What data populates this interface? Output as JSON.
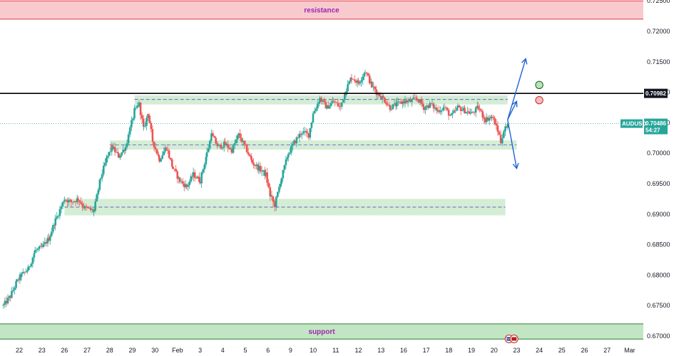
{
  "chart_data": {
    "type": "candlestick",
    "symbol": "AUDUSD",
    "last_price": "0.70486",
    "countdown": "54:27",
    "marked_level": "0.70982",
    "ylim": [
      0.6685,
      0.725
    ],
    "y_ticks": [
      "0.72500",
      "0.72000",
      "0.71500",
      "0.71000",
      "0.70500",
      "0.70000",
      "0.69500",
      "0.69000",
      "0.68500",
      "0.68000",
      "0.67500",
      "0.67000"
    ],
    "x_ticks": [
      {
        "label": "22",
        "t": 0
      },
      {
        "label": "23",
        "t": 1
      },
      {
        "label": "26",
        "t": 2
      },
      {
        "label": "27",
        "t": 3
      },
      {
        "label": "28",
        "t": 4
      },
      {
        "label": "29",
        "t": 5
      },
      {
        "label": "30",
        "t": 6
      },
      {
        "label": "Feb",
        "t": 7
      },
      {
        "label": "3",
        "t": 8
      },
      {
        "label": "4",
        "t": 9
      },
      {
        "label": "5",
        "t": 10
      },
      {
        "label": "6",
        "t": 11
      },
      {
        "label": "9",
        "t": 12
      },
      {
        "label": "10",
        "t": 13
      },
      {
        "label": "11",
        "t": 14
      },
      {
        "label": "12",
        "t": 15
      },
      {
        "label": "13",
        "t": 16
      },
      {
        "label": "16",
        "t": 17
      },
      {
        "label": "17",
        "t": 18
      },
      {
        "label": "18",
        "t": 19
      },
      {
        "label": "19",
        "t": 20
      },
      {
        "label": "20",
        "t": 21
      },
      {
        "label": "23",
        "t": 22
      },
      {
        "label": "24",
        "t": 23
      },
      {
        "label": "25",
        "t": 24
      },
      {
        "label": "26",
        "t": 25
      },
      {
        "label": "27",
        "t": 26
      },
      {
        "label": "Mar",
        "t": 27
      }
    ],
    "price_path": [
      [
        -0.7,
        0.675
      ],
      [
        -0.4,
        0.6765
      ],
      [
        -0.1,
        0.679
      ],
      [
        0.1,
        0.68
      ],
      [
        0.4,
        0.681
      ],
      [
        0.7,
        0.684
      ],
      [
        1.0,
        0.6845
      ],
      [
        1.3,
        0.686
      ],
      [
        1.6,
        0.689
      ],
      [
        2.0,
        0.6925
      ],
      [
        2.3,
        0.692
      ],
      [
        2.6,
        0.6925
      ],
      [
        2.9,
        0.691
      ],
      [
        3.3,
        0.6905
      ],
      [
        3.6,
        0.696
      ],
      [
        3.9,
        0.6995
      ],
      [
        4.1,
        0.701
      ],
      [
        4.4,
        0.6995
      ],
      [
        4.7,
        0.701
      ],
      [
        4.9,
        0.704
      ],
      [
        5.1,
        0.707
      ],
      [
        5.3,
        0.708
      ],
      [
        5.5,
        0.704
      ],
      [
        5.7,
        0.7065
      ],
      [
        5.9,
        0.702
      ],
      [
        6.2,
        0.699
      ],
      [
        6.5,
        0.701
      ],
      [
        6.8,
        0.6975
      ],
      [
        7.1,
        0.6955
      ],
      [
        7.4,
        0.6945
      ],
      [
        7.7,
        0.6965
      ],
      [
        8.0,
        0.6955
      ],
      [
        8.3,
        0.7
      ],
      [
        8.5,
        0.703
      ],
      [
        8.8,
        0.701
      ],
      [
        9.1,
        0.7015
      ],
      [
        9.4,
        0.7005
      ],
      [
        9.7,
        0.703
      ],
      [
        10.0,
        0.701
      ],
      [
        10.3,
        0.6985
      ],
      [
        10.6,
        0.6975
      ],
      [
        10.9,
        0.6965
      ],
      [
        11.1,
        0.693
      ],
      [
        11.3,
        0.6915
      ],
      [
        11.6,
        0.696
      ],
      [
        11.9,
        0.7
      ],
      [
        12.2,
        0.702
      ],
      [
        12.5,
        0.7035
      ],
      [
        12.8,
        0.703
      ],
      [
        13.0,
        0.7065
      ],
      [
        13.3,
        0.709
      ],
      [
        13.6,
        0.7075
      ],
      [
        13.9,
        0.7085
      ],
      [
        14.2,
        0.7075
      ],
      [
        14.4,
        0.71
      ],
      [
        14.7,
        0.7125
      ],
      [
        15.0,
        0.7115
      ],
      [
        15.3,
        0.7135
      ],
      [
        15.6,
        0.711
      ],
      [
        15.8,
        0.71
      ],
      [
        16.1,
        0.709
      ],
      [
        16.4,
        0.7075
      ],
      [
        16.7,
        0.708
      ],
      [
        17.0,
        0.7085
      ],
      [
        17.3,
        0.7085
      ],
      [
        17.6,
        0.709
      ],
      [
        17.9,
        0.7075
      ],
      [
        18.2,
        0.708
      ],
      [
        18.5,
        0.707
      ],
      [
        18.8,
        0.7075
      ],
      [
        19.1,
        0.706
      ],
      [
        19.4,
        0.7075
      ],
      [
        19.7,
        0.707
      ],
      [
        20.0,
        0.7065
      ],
      [
        20.3,
        0.7075
      ],
      [
        20.6,
        0.7055
      ],
      [
        20.9,
        0.706
      ],
      [
        21.1,
        0.7045
      ],
      [
        21.3,
        0.702
      ],
      [
        21.5,
        0.704
      ],
      [
        21.6,
        0.70486
      ]
    ],
    "zones": [
      {
        "name": "resistance",
        "y0": 0.722,
        "y1": 0.725,
        "t0": -1,
        "t1": 28
      },
      {
        "name": "support",
        "y0": 0.6695,
        "y1": 0.672,
        "t0": -1,
        "t1": 28
      },
      {
        "name": "upper-range",
        "y0": 0.708,
        "y1": 0.7095,
        "t0": 5.1,
        "t1": 21.6
      },
      {
        "name": "mid-range",
        "y0": 0.7006,
        "y1": 0.7021,
        "t0": 4.0,
        "t1": 22.0
      },
      {
        "name": "lower-range",
        "y0": 0.6898,
        "y1": 0.6925,
        "t0": 2.0,
        "t1": 21.5
      }
    ],
    "dashed_levels": [
      {
        "y": 0.70882,
        "t0": 5.1,
        "t1": 21.6
      },
      {
        "y": 0.70135,
        "t0": 4.0,
        "t1": 22.0
      },
      {
        "y": 0.69115,
        "t0": 2.0,
        "t1": 21.5
      }
    ],
    "scenario_arrows": [
      {
        "from": [
          21.6,
          0.7055
        ],
        "to": [
          22.0,
          0.7085
        ]
      },
      {
        "from": [
          21.6,
          0.7055
        ],
        "to": [
          22.4,
          0.7155
        ]
      },
      {
        "from": [
          21.6,
          0.7055
        ],
        "to": [
          22.0,
          0.6975
        ]
      }
    ],
    "markers": [
      {
        "kind": "buy",
        "t": 23.0,
        "y": 0.7112
      },
      {
        "kind": "sell",
        "t": 23.0,
        "y": 0.7087
      }
    ],
    "colors": {
      "up": "#26a69a",
      "down": "#ef5350",
      "zone_green": "#b7e1b9",
      "zone_red": "#f7c1c6",
      "resistance_label": "#9c27b0",
      "support_label": "#9c27b0",
      "arrow": "#1e63d6",
      "level_line": "#000000",
      "price_tag": "#26a69a"
    }
  },
  "labels": {
    "resistance": "resistance",
    "support": "support"
  }
}
